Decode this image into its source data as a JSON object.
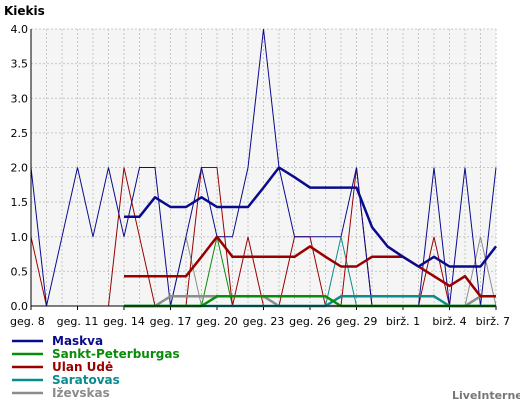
{
  "chart_data": {
    "type": "line",
    "title": "Kiekis",
    "ylabel": "",
    "xlabel": "",
    "ylim": [
      0,
      4
    ],
    "yticks": [
      "0.0",
      "0.5",
      "1.0",
      "1.5",
      "2.0",
      "2.5",
      "3.0",
      "3.5",
      "4.0"
    ],
    "ytick_values": [
      0,
      0.5,
      1,
      1.5,
      2,
      2.5,
      3,
      3.5,
      4
    ],
    "x_count": 31,
    "xtick_labels": [
      "geg. 8",
      "geg. 11",
      "geg. 14",
      "geg. 17",
      "geg. 20",
      "geg. 23",
      "geg. 26",
      "geg. 29",
      "birž. 1",
      "birž. 4",
      "birž. 7"
    ],
    "xtick_index": [
      0,
      3,
      6,
      9,
      12,
      15,
      18,
      21,
      24,
      27,
      30
    ],
    "grid": true,
    "legend_position": "bottom-left",
    "series": [
      {
        "name": "Maskva",
        "color": "#0a0a8c",
        "daily": [
          2,
          0,
          1,
          2,
          1,
          2,
          1,
          2,
          2,
          0,
          1,
          2,
          1,
          1,
          2,
          4,
          2,
          1,
          1,
          1,
          1,
          2,
          0,
          0,
          0,
          0,
          2,
          0,
          2,
          0,
          2
        ],
        "avg_start": 6,
        "avg": [
          1.29,
          1.29,
          1.57,
          1.43,
          1.43,
          1.57,
          1.43,
          1.43,
          1.43,
          1.71,
          2.0,
          1.86,
          1.71,
          1.71,
          1.71,
          1.71,
          1.14,
          0.86,
          0.71,
          0.57,
          0.71,
          0.57,
          0.57,
          0.57,
          0.86
        ]
      },
      {
        "name": "Sankt-Peterburgas",
        "color": "#0a8c0a",
        "daily": [
          0,
          0,
          0,
          0,
          0,
          0,
          0,
          0,
          0,
          0,
          0,
          0,
          1,
          0,
          0,
          0,
          0,
          0,
          0,
          0,
          0,
          0,
          0,
          0,
          0,
          0,
          0,
          0,
          0,
          0,
          0
        ],
        "avg_start": 6,
        "avg": [
          0,
          0,
          0,
          0,
          0,
          0,
          0.14,
          0.14,
          0.14,
          0.14,
          0.14,
          0.14,
          0.14,
          0.14,
          0,
          0,
          0,
          0,
          0,
          0,
          0,
          0,
          0,
          0,
          0
        ]
      },
      {
        "name": "Ulan Udė",
        "color": "#9a0000",
        "daily": [
          1,
          0,
          0,
          0,
          0,
          0,
          2,
          1,
          0,
          0,
          0,
          2,
          2,
          0,
          1,
          0,
          0,
          1,
          1,
          0,
          0,
          2,
          0,
          0,
          0,
          0,
          1,
          0,
          0,
          0,
          0
        ],
        "avg_start": 6,
        "avg": [
          0.43,
          0.43,
          0.43,
          0.43,
          0.43,
          0.71,
          1.0,
          0.71,
          0.71,
          0.71,
          0.71,
          0.71,
          0.86,
          0.71,
          0.57,
          0.57,
          0.71,
          0.71,
          0.71,
          0.57,
          0.43,
          0.29,
          0.43,
          0.14,
          0.14
        ]
      },
      {
        "name": "Saratovas",
        "color": "#0a8c8c",
        "daily": [
          0,
          0,
          0,
          0,
          0,
          0,
          0,
          0,
          0,
          0,
          0,
          0,
          0,
          0,
          0,
          0,
          0,
          0,
          0,
          0,
          1,
          0,
          0,
          0,
          0,
          0,
          0,
          0,
          0,
          0,
          0
        ],
        "avg_start": 6,
        "avg": [
          0,
          0,
          0,
          0,
          0,
          0,
          0,
          0,
          0,
          0,
          0,
          0,
          0,
          0,
          0.14,
          0.14,
          0.14,
          0.14,
          0.14,
          0.14,
          0.14,
          0,
          0,
          0,
          0
        ]
      },
      {
        "name": "Iževskas",
        "color": "#8c8c8c",
        "daily": [
          0,
          0,
          0,
          0,
          0,
          0,
          0,
          0,
          0,
          0,
          1,
          0,
          0,
          0,
          0,
          0,
          0,
          0,
          0,
          0,
          0,
          0,
          0,
          0,
          0,
          0,
          0,
          0,
          0,
          1,
          0
        ],
        "avg_start": 6,
        "avg": [
          0,
          0,
          0,
          0.14,
          0.14,
          0.14,
          0.14,
          0.14,
          0.14,
          0.14,
          0,
          0,
          0,
          0,
          0,
          0,
          0,
          0,
          0,
          0,
          0,
          0,
          0,
          0.14,
          0.14
        ]
      }
    ]
  },
  "footer": {
    "credit": "LiveInternet"
  }
}
